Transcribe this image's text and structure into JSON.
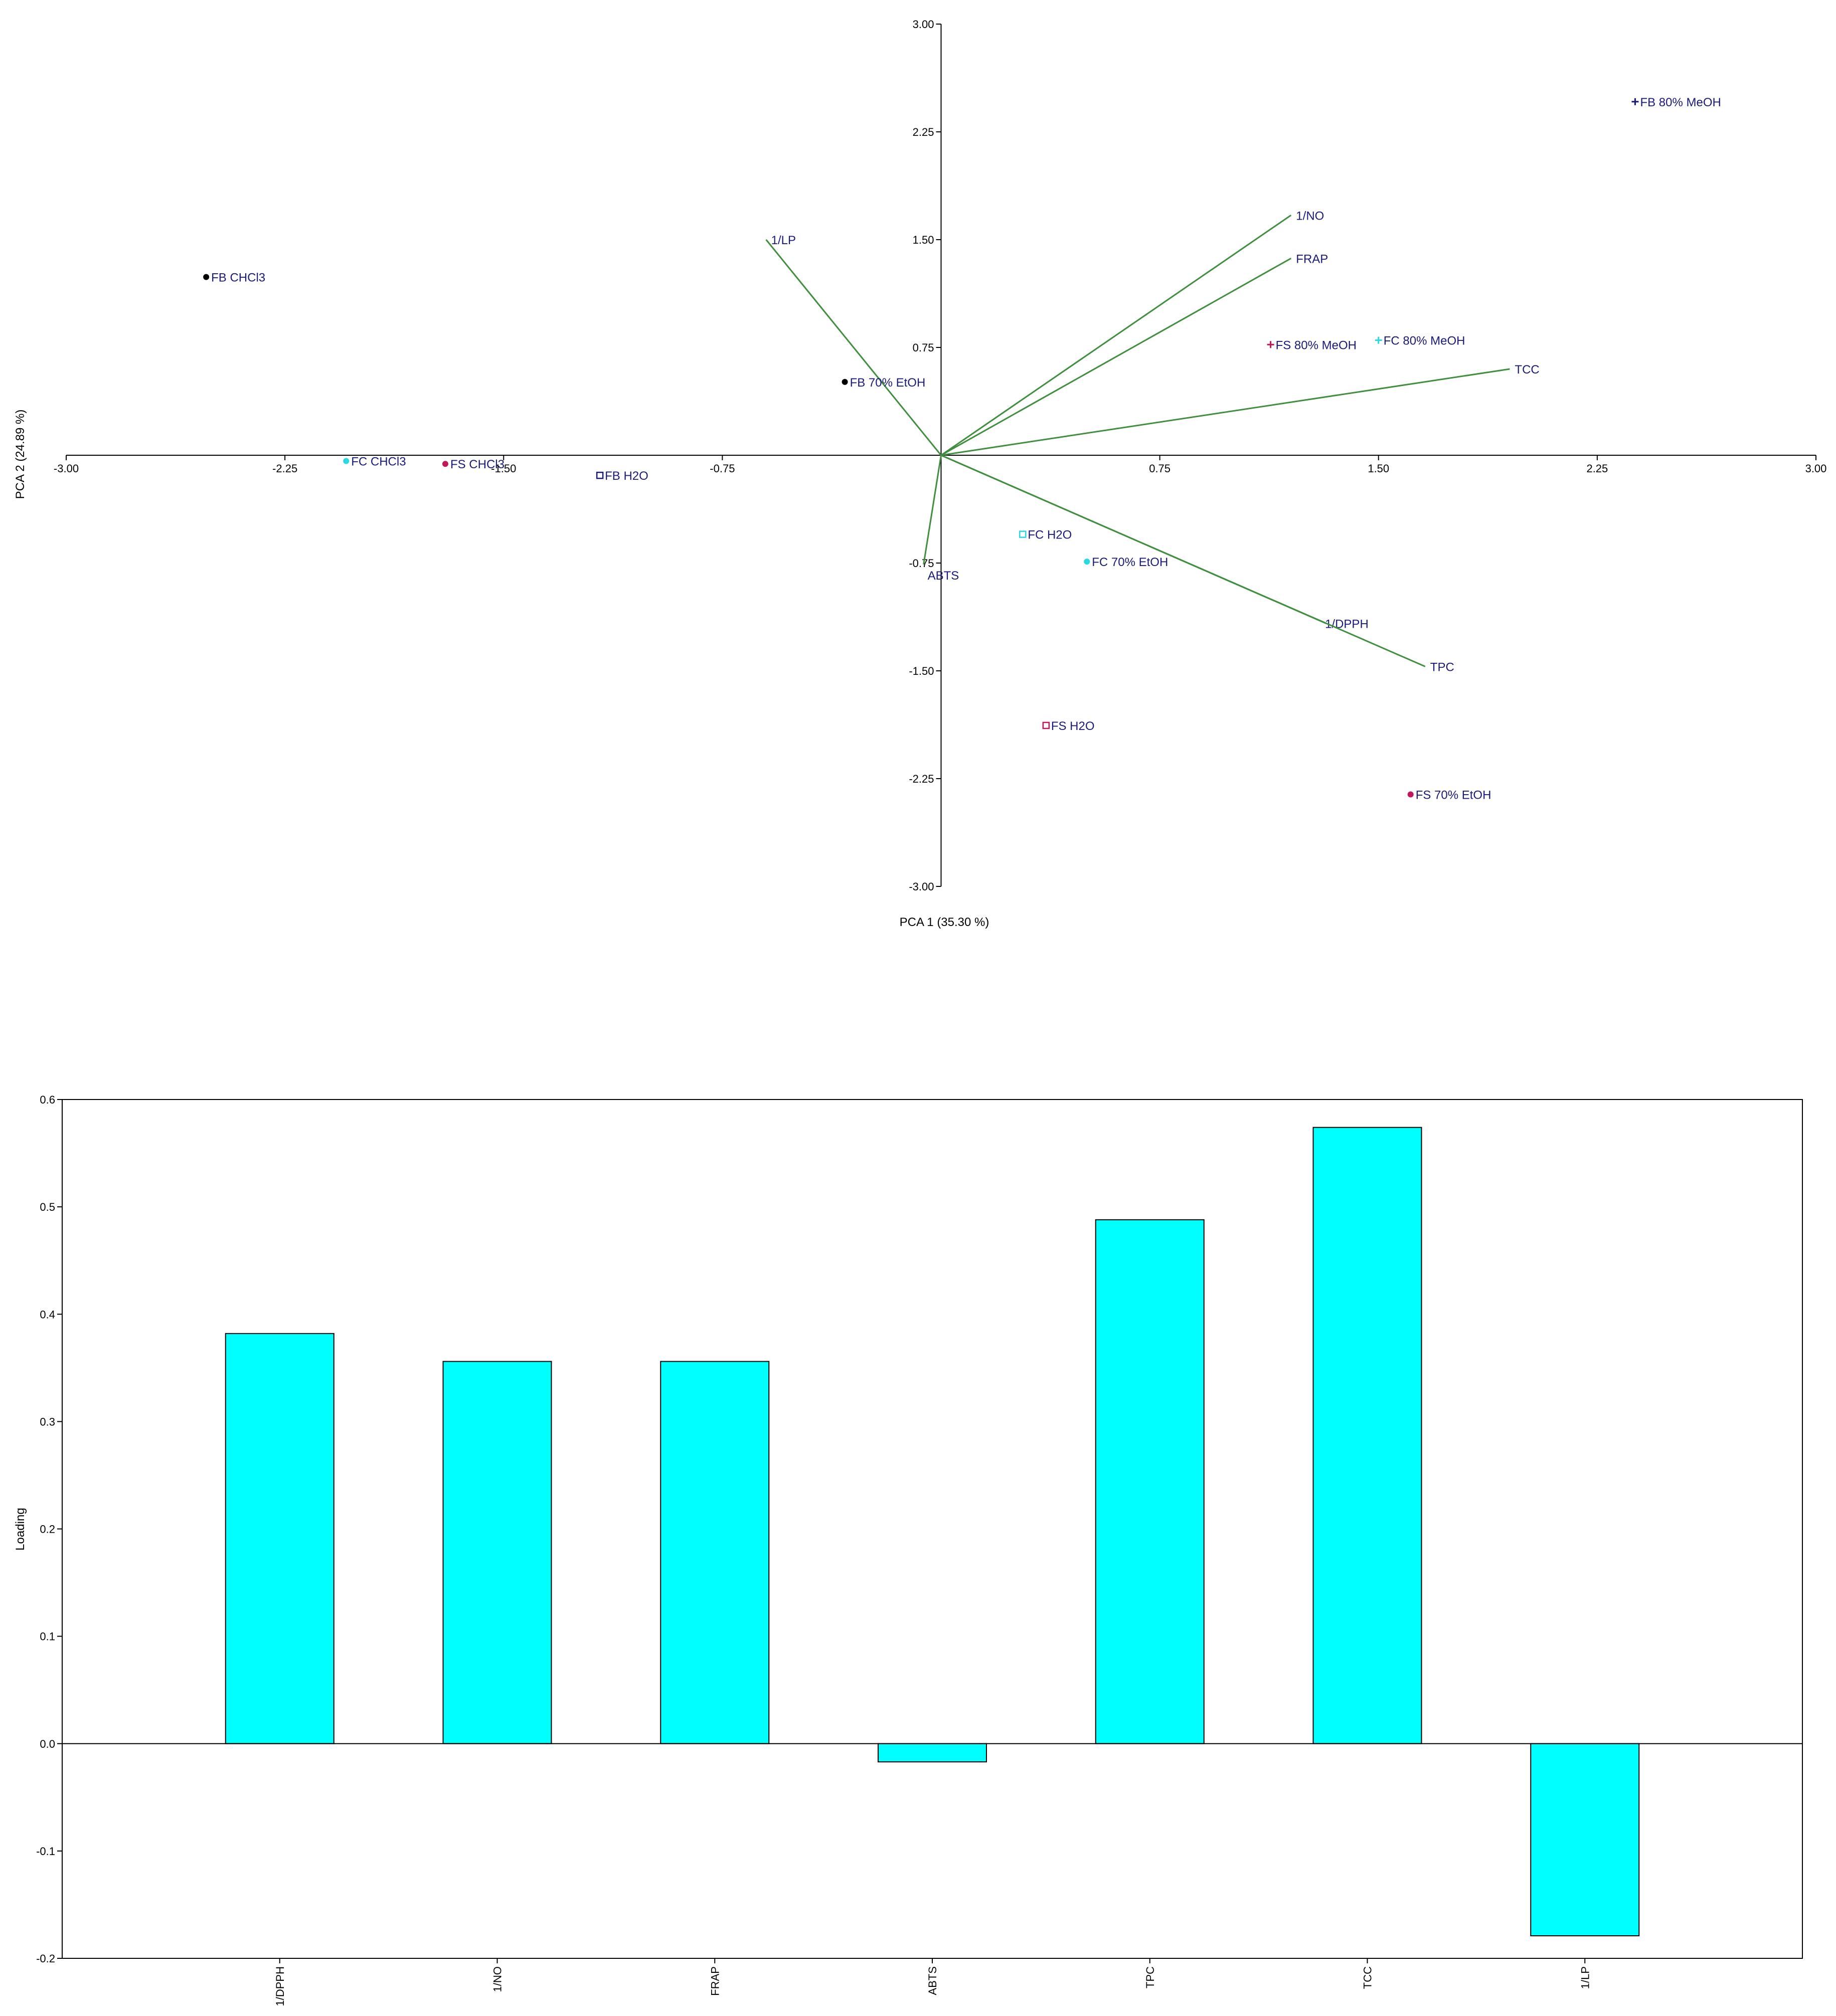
{
  "chart_data": [
    {
      "type": "scatter",
      "title": "",
      "xlabel": "PCA 1 (35.30 %)",
      "ylabel": "PCA 2 (24.89 %)",
      "xlim": [
        -3.0,
        3.0
      ],
      "ylim": [
        -3.0,
        3.0
      ],
      "xticks": [
        "-3.00",
        "-2.25",
        "-1.50",
        "-0.75",
        "0.75",
        "1.50",
        "2.25",
        "3.00"
      ],
      "yticks": [
        "3.00",
        "2.25",
        "1.50",
        "0.75",
        "-0.75",
        "-1.50",
        "-2.25",
        "-3.00"
      ],
      "grid": false,
      "points": [
        {
          "label": "FB 80% MeOH",
          "x": 2.38,
          "y": 2.46,
          "marker": "plus",
          "color": "#1a1a7a"
        },
        {
          "label": "FB CHCl3",
          "x": -2.52,
          "y": 1.24,
          "marker": "dot",
          "color": "#000000"
        },
        {
          "label": "FB 70% EtOH",
          "x": -0.33,
          "y": 0.51,
          "marker": "dot",
          "color": "#000000"
        },
        {
          "label": "FB H2O",
          "x": -1.17,
          "y": -0.14,
          "marker": "square",
          "color": "#1a1a7a"
        },
        {
          "label": "FC CHCl3",
          "x": -2.04,
          "y": -0.04,
          "marker": "dot",
          "color": "#29d8e0"
        },
        {
          "label": "FS CHCl3",
          "x": -1.7,
          "y": -0.06,
          "marker": "dot",
          "color": "#c0185a"
        },
        {
          "label": "FC 80% MeOH",
          "x": 1.5,
          "y": 0.8,
          "marker": "plus",
          "color": "#29d8e0"
        },
        {
          "label": "FS 80% MeOH",
          "x": 1.13,
          "y": 0.77,
          "marker": "plus",
          "color": "#c0185a"
        },
        {
          "label": "FC H2O",
          "x": 0.28,
          "y": -0.55,
          "marker": "square",
          "color": "#29d8e0"
        },
        {
          "label": "FC 70% EtOH",
          "x": 0.5,
          "y": -0.74,
          "marker": "dot",
          "color": "#29d8e0"
        },
        {
          "label": "FS H2O",
          "x": 0.36,
          "y": -1.88,
          "marker": "square",
          "color": "#c0185a"
        },
        {
          "label": "FS 70% EtOH",
          "x": 1.61,
          "y": -2.36,
          "marker": "dot",
          "color": "#c0185a"
        }
      ],
      "vectors": [
        {
          "label": "1/LP",
          "x": -0.6,
          "y": 1.5
        },
        {
          "label": "1/NO",
          "x": 1.2,
          "y": 1.67
        },
        {
          "label": "FRAP",
          "x": 1.2,
          "y": 1.37
        },
        {
          "label": "TCC",
          "x": 1.95,
          "y": 0.6
        },
        {
          "label": "1/DPPH",
          "x": 1.32,
          "y": -1.17
        },
        {
          "label": "TPC",
          "x": 1.66,
          "y": -1.47
        },
        {
          "label": "ABTS",
          "x": -0.06,
          "y": -0.76
        }
      ],
      "vector_color": "#3f8f3f"
    },
    {
      "type": "bar",
      "title": "",
      "xlabel": "",
      "ylabel": "Loading",
      "ylim": [
        -0.2,
        0.6
      ],
      "yticks": [
        "0.6",
        "0.5",
        "0.4",
        "0.3",
        "0.2",
        "0.1",
        "0.0",
        "-0.1",
        "-0.2"
      ],
      "categories": [
        "1/DPPH",
        "1/NO",
        "FRAP",
        "ABTS",
        "TPC",
        "TCC",
        "1/LP"
      ],
      "values": [
        0.382,
        0.356,
        0.356,
        -0.017,
        0.488,
        0.574,
        -0.179
      ],
      "bar_color": "#00ffff",
      "grid": false
    }
  ]
}
